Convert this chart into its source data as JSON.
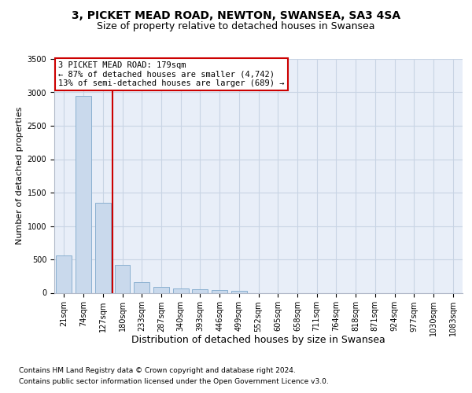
{
  "title1": "3, PICKET MEAD ROAD, NEWTON, SWANSEA, SA3 4SA",
  "title2": "Size of property relative to detached houses in Swansea",
  "xlabel": "Distribution of detached houses by size in Swansea",
  "ylabel": "Number of detached properties",
  "footnote1": "Contains HM Land Registry data © Crown copyright and database right 2024.",
  "footnote2": "Contains public sector information licensed under the Open Government Licence v3.0.",
  "bin_labels": [
    "21sqm",
    "74sqm",
    "127sqm",
    "180sqm",
    "233sqm",
    "287sqm",
    "340sqm",
    "393sqm",
    "446sqm",
    "499sqm",
    "552sqm",
    "605sqm",
    "658sqm",
    "711sqm",
    "764sqm",
    "818sqm",
    "871sqm",
    "924sqm",
    "977sqm",
    "1030sqm",
    "1083sqm"
  ],
  "bar_values": [
    560,
    2950,
    1350,
    420,
    155,
    85,
    65,
    50,
    40,
    30,
    0,
    0,
    0,
    0,
    0,
    0,
    0,
    0,
    0,
    0,
    0
  ],
  "bar_color": "#c9d9ec",
  "bar_edge_color": "#8ab0d0",
  "red_line_x": 2.5,
  "highlight_color": "#cc0000",
  "annotation_line1": "3 PICKET MEAD ROAD: 179sqm",
  "annotation_line2": "← 87% of detached houses are smaller (4,742)",
  "annotation_line3": "13% of semi-detached houses are larger (689) →",
  "annotation_box_edgecolor": "#cc0000",
  "ylim": [
    0,
    3500
  ],
  "yticks": [
    0,
    500,
    1000,
    1500,
    2000,
    2500,
    3000,
    3500
  ],
  "grid_color": "#c8d4e4",
  "bg_color": "#e8eef8",
  "title1_fontsize": 10,
  "title2_fontsize": 9,
  "ylabel_fontsize": 8,
  "xlabel_fontsize": 9,
  "tick_fontsize": 7,
  "footnote_fontsize": 6.5
}
